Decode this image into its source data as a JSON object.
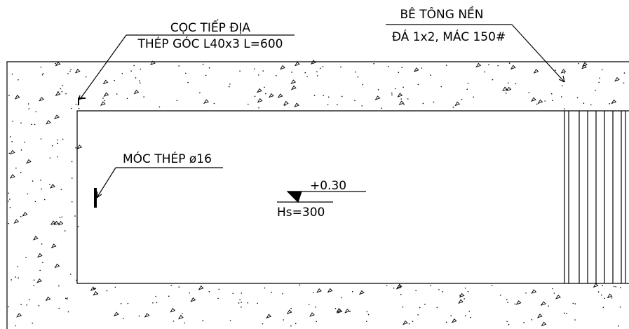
{
  "labels": {
    "ground_rod": {
      "line1": "CỌC TIẾP ĐỊA",
      "line2": "THÉP GÓC L40x3 L=600"
    },
    "concrete": {
      "line1": "BÊ TÔNG NỀN",
      "line2": "ĐÁ 1x2, MÁC 150#"
    },
    "hook": "MÓC THÉP ø16",
    "level": "+0.30",
    "height": "Hs=300"
  }
}
